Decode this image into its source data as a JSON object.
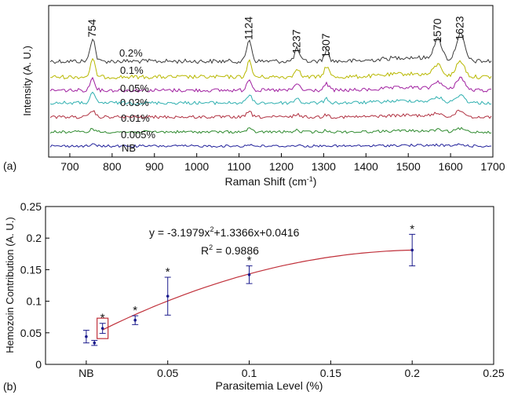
{
  "chart_data": [
    {
      "type": "line",
      "panel_label": "(a)",
      "xlabel": "Raman Shift (cm",
      "xlabel_sup": "-1",
      "xlabel_end": ")",
      "ylabel": "Intensity (A. U.)",
      "xlim": [
        650,
        1700
      ],
      "xticks": [
        "700",
        "800",
        "900",
        "1000",
        "1100",
        "1200",
        "1300",
        "1400",
        "1500",
        "1600",
        "1700"
      ],
      "peak_labels": [
        "754",
        "1124",
        "1237",
        "1307",
        "1570",
        "1623"
      ],
      "series": [
        {
          "name": "0.2%",
          "color": "#3a3a3a",
          "peak_height": 1.0,
          "peaks": [
            [
              754,
              30
            ],
            [
              1124,
              28
            ],
            [
              1237,
              16
            ],
            [
              1307,
              14
            ],
            [
              1570,
              26
            ],
            [
              1623,
              34
            ]
          ]
        },
        {
          "name": "0.1%",
          "color": "#b8b800",
          "peak_height": 0.8,
          "peaks": [
            [
              754,
              22
            ],
            [
              1124,
              20
            ],
            [
              1237,
              12
            ],
            [
              1307,
              14
            ],
            [
              1570,
              14
            ],
            [
              1623,
              20
            ]
          ]
        },
        {
          "name": "0.05%",
          "color": "#a020a0",
          "peak_height": 0.7,
          "peaks": [
            [
              754,
              16
            ],
            [
              1124,
              15
            ],
            [
              1237,
              9
            ],
            [
              1307,
              8
            ],
            [
              1570,
              10
            ],
            [
              1623,
              16
            ]
          ]
        },
        {
          "name": "0.03%",
          "color": "#30b0b0",
          "peak_height": 0.55,
          "peaks": [
            [
              754,
              12
            ],
            [
              1124,
              10
            ],
            [
              1237,
              6
            ],
            [
              1307,
              5
            ],
            [
              1570,
              6
            ],
            [
              1623,
              10
            ]
          ]
        },
        {
          "name": "0.01%",
          "color": "#b03040",
          "peak_height": 0.45,
          "peaks": [
            [
              754,
              8
            ],
            [
              1124,
              7
            ],
            [
              1237,
              4
            ],
            [
              1307,
              3
            ],
            [
              1570,
              4
            ],
            [
              1623,
              8
            ]
          ]
        },
        {
          "name": "0.005%",
          "color": "#2e8a2e",
          "peak_height": 0.3,
          "peaks": [
            [
              754,
              4
            ],
            [
              1124,
              4
            ],
            [
              1237,
              2
            ],
            [
              1307,
              2
            ],
            [
              1570,
              2
            ],
            [
              1623,
              4
            ]
          ]
        },
        {
          "name": "NB",
          "color": "#20209a",
          "peak_height": 0.2,
          "peaks": [
            [
              754,
              2
            ],
            [
              1124,
              2
            ],
            [
              1237,
              1
            ],
            [
              1307,
              1
            ],
            [
              1570,
              1
            ],
            [
              1623,
              2
            ]
          ]
        }
      ]
    },
    {
      "type": "scatter",
      "panel_label": "(b)",
      "xlabel": "Parasitemia Level (%)",
      "ylabel": "Hemozoin Contribution (A. U.)",
      "xlim": [
        -0.025,
        0.25
      ],
      "ylim": [
        0,
        0.25
      ],
      "xticks": [
        {
          "v": 0,
          "label": "NB"
        },
        {
          "v": 0.05,
          "label": "0.05"
        },
        {
          "v": 0.1,
          "label": "0.1"
        },
        {
          "v": 0.15,
          "label": "0.15"
        },
        {
          "v": 0.2,
          "label": "0.2"
        },
        {
          "v": 0.25,
          "label": "0.25"
        }
      ],
      "yticks": [
        {
          "v": 0,
          "label": "0"
        },
        {
          "v": 0.05,
          "label": "0.05"
        },
        {
          "v": 0.1,
          "label": "0.1"
        },
        {
          "v": 0.15,
          "label": "0.15"
        },
        {
          "v": 0.2,
          "label": "0.2"
        },
        {
          "v": 0.25,
          "label": "0.25"
        }
      ],
      "points": [
        {
          "x": 0,
          "y": 0.044,
          "err": 0.01,
          "star": false,
          "boxed": false
        },
        {
          "x": 0.005,
          "y": 0.034,
          "err": 0.004,
          "star": false,
          "boxed": false
        },
        {
          "x": 0.01,
          "y": 0.057,
          "err": 0.008,
          "star": true,
          "boxed": true
        },
        {
          "x": 0.03,
          "y": 0.07,
          "err": 0.007,
          "star": true,
          "boxed": false
        },
        {
          "x": 0.05,
          "y": 0.108,
          "err": 0.03,
          "star": true,
          "boxed": false
        },
        {
          "x": 0.1,
          "y": 0.142,
          "err": 0.014,
          "star": true,
          "boxed": false
        },
        {
          "x": 0.2,
          "y": 0.181,
          "err": 0.025,
          "star": true,
          "boxed": false
        }
      ],
      "fit": {
        "a": -3.1979,
        "b": 1.3366,
        "c": 0.0416,
        "x_range": [
          0.01,
          0.2
        ]
      },
      "equation_parts": [
        "y = -3.1979x",
        "2",
        "+1.3366x+0.0416"
      ],
      "r2_parts": [
        "R",
        "2",
        " = 0.9886"
      ],
      "star_symbol": "*",
      "colors": {
        "points": "#1a1a8c",
        "fit": "#c0303a",
        "box": "#c0303a"
      }
    }
  ]
}
